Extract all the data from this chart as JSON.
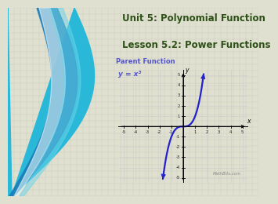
{
  "title_line1": "Unit 5: Polynomial Function",
  "title_line2": "Lesson 5.2: Power Functions",
  "title_color": "#2d5016",
  "title_fontsize": 8.5,
  "bg_color": "#dfe0d0",
  "graph_bg": "#ffffff",
  "grid_color": "#cccccc",
  "curve_color": "#2222cc",
  "label_color": "#5555cc",
  "parent_label": "Parent Function",
  "equation_label": "y = x³",
  "watermark": "MathBits.com",
  "xlim": [
    -5.5,
    5.5
  ],
  "ylim": [
    -5.5,
    5.5
  ],
  "xticks": [
    -5,
    -4,
    -3,
    -2,
    -1,
    1,
    2,
    3,
    4,
    5
  ],
  "yticks": [
    -5,
    -4,
    -3,
    -2,
    -1,
    1,
    2,
    3,
    4,
    5
  ],
  "tick_labels_x": [
    "-5",
    "-4",
    "-3",
    "-2",
    "-1",
    "1",
    "2",
    "3",
    "4",
    "5"
  ],
  "tick_labels_y": [
    "-5",
    "-4",
    "-3",
    "-2",
    "-1",
    "1",
    "2",
    "3",
    "4",
    "5"
  ],
  "wave_color1": "#29b8d8",
  "wave_color2": "#1a7ab8",
  "wave_color3": "#6dd4e8",
  "wave_white": "#e0f4f8"
}
